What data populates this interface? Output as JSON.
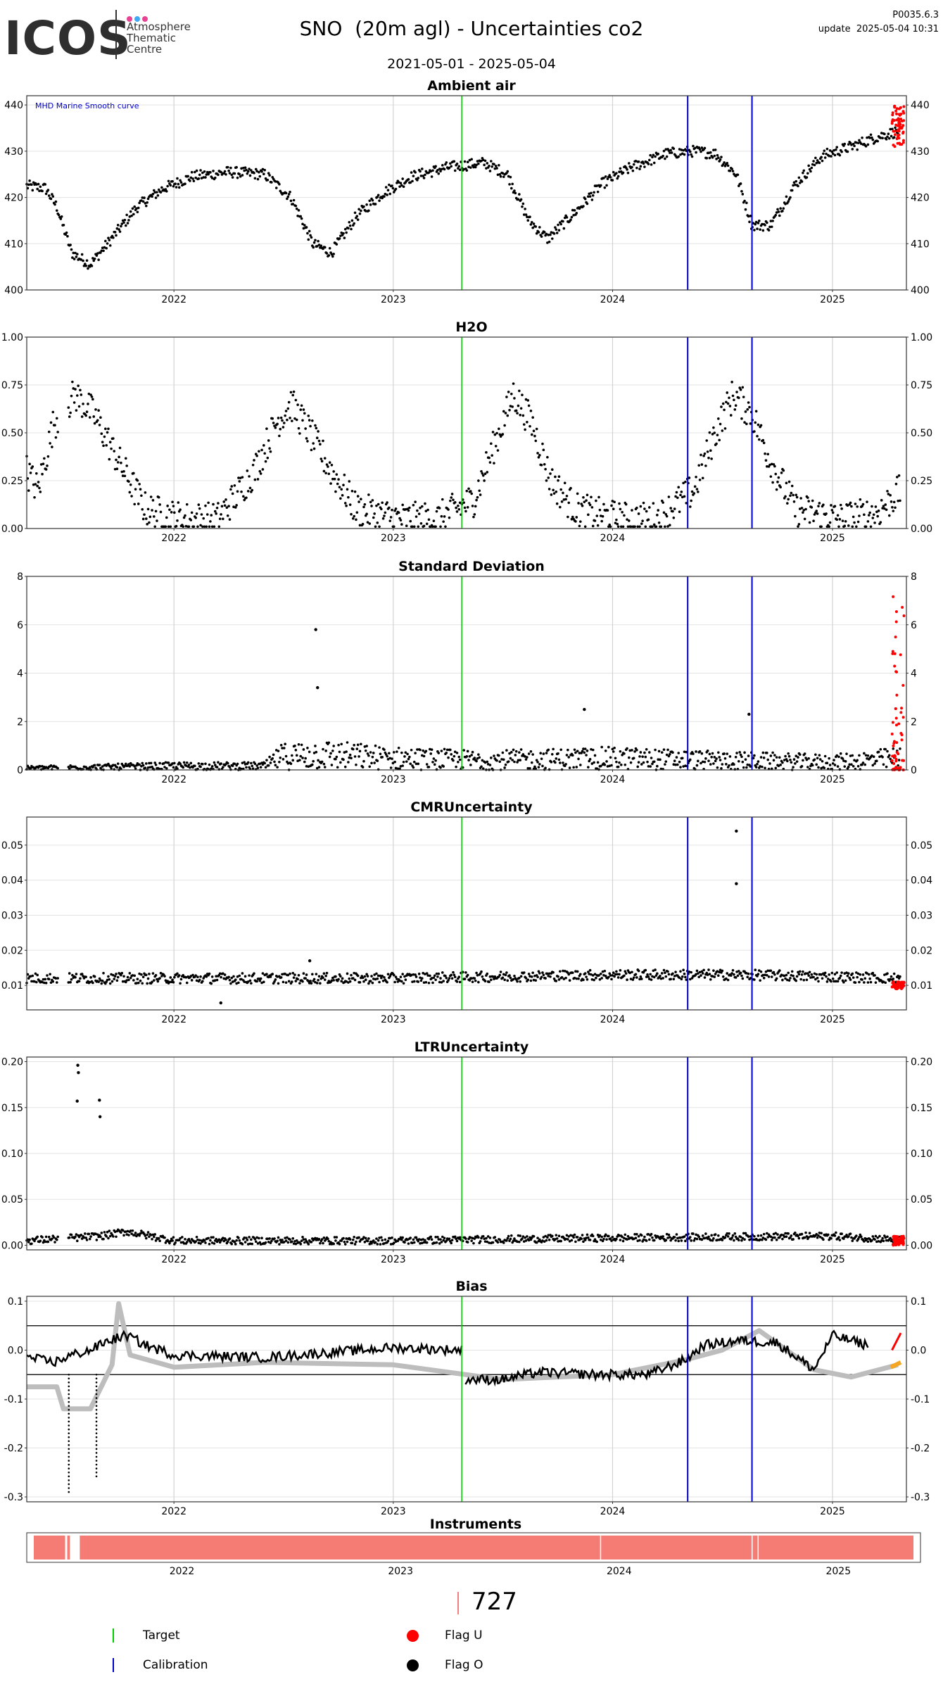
{
  "header": {
    "logo_text": "ICOS",
    "logo_sub": "Atmosphere Thematic Centre",
    "version": "P0035.6.3",
    "update": "update  2025-05-04 10:31",
    "title": "SNO  (20m agl) - Uncertainties co2",
    "date_range": "2021-05-01 - 2025-05-04",
    "logo_dot_colors": [
      "#e84393",
      "#3fa9f5",
      "#e84393"
    ]
  },
  "colors": {
    "points": "#000000",
    "flag_u": "#ff0000",
    "target": "#00cc00",
    "calibration": "#0000cc",
    "bias_smooth": "#bdbdbd",
    "bias_recent": "#f5a623",
    "instrument_bar": "#f47c74"
  },
  "chart_data": [
    {
      "type": "scatter",
      "title": "Ambient air",
      "annotation": "MHD Marine Smooth curve",
      "xlim": [
        "2021-05-01",
        "2025-05-04"
      ],
      "ylim": [
        400,
        442
      ],
      "yticks": [
        400,
        410,
        420,
        430,
        440
      ],
      "xticks": [
        "2022",
        "2023",
        "2024",
        "2025"
      ],
      "series": [
        {
          "values_x": [
            "2021-05-01",
            "2021-06-01",
            "2021-06-20",
            "2021-07-15",
            "2021-08-15",
            "2021-10-01",
            "2021-11-01",
            "2021-12-15",
            "2022-02-01",
            "2022-04-01",
            "2022-06-01",
            "2022-07-15",
            "2022-08-20",
            "2022-09-20",
            "2022-11-01",
            "2022-12-15",
            "2023-02-01",
            "2023-04-01",
            "2023-06-01",
            "2023-07-10",
            "2023-08-15",
            "2023-09-15",
            "2023-11-01",
            "2023-12-15",
            "2024-02-01",
            "2024-04-01",
            "2024-05-15",
            "2024-06-20",
            "2024-07-25",
            "2024-08-20",
            "2024-09-20",
            "2024-11-01",
            "2024-12-15",
            "2025-02-01",
            "2025-03-15",
            "2025-04-25"
          ],
          "values_y": [
            422.5,
            422,
            418,
            408,
            405.5,
            413,
            418,
            422,
            424.5,
            425.5,
            425,
            420,
            410,
            408,
            416,
            421,
            424.5,
            426.5,
            427.5,
            425,
            415,
            411,
            417,
            423,
            426.5,
            429.5,
            430,
            429.5,
            425,
            414,
            414,
            423,
            429,
            431,
            433,
            434.5
          ]
        }
      ],
      "flag_u_tail": {
        "x_start": "2025-04-10",
        "y_range": [
          431,
          440
        ]
      },
      "target_lines": [
        "2023-04-25"
      ],
      "calibration_lines": [
        "2024-05-05",
        "2024-08-20"
      ]
    },
    {
      "type": "scatter",
      "title": "H2O",
      "xlim": [
        "2021-05-01",
        "2025-05-04"
      ],
      "ylim": [
        0,
        1.0
      ],
      "yticks": [
        0.0,
        0.25,
        0.5,
        0.75,
        1.0
      ],
      "xticks": [
        "2022",
        "2023",
        "2024",
        "2025"
      ],
      "series": [
        {
          "values_x": [
            "2021-05-01",
            "2021-05-20",
            "2021-06-15",
            "2021-07-20",
            "2021-08-20",
            "2021-10-01",
            "2021-11-15",
            "2022-01-15",
            "2022-03-15",
            "2022-05-15",
            "2022-06-20",
            "2022-07-15",
            "2022-08-15",
            "2022-09-20",
            "2022-11-01",
            "2023-01-15",
            "2023-03-15",
            "2023-05-15",
            "2023-06-20",
            "2023-07-20",
            "2023-08-20",
            "2023-09-20",
            "2023-11-01",
            "2024-01-15",
            "2024-03-15",
            "2024-05-15",
            "2024-06-20",
            "2024-07-20",
            "2024-08-20",
            "2024-09-20",
            "2024-11-01",
            "2025-01-15",
            "2025-03-15",
            "2025-04-25"
          ],
          "values_y": [
            0.3,
            0.2,
            0.55,
            0.7,
            0.6,
            0.35,
            0.1,
            0.05,
            0.05,
            0.3,
            0.55,
            0.65,
            0.5,
            0.3,
            0.1,
            0.05,
            0.05,
            0.15,
            0.45,
            0.7,
            0.55,
            0.25,
            0.1,
            0.05,
            0.05,
            0.2,
            0.5,
            0.7,
            0.6,
            0.35,
            0.1,
            0.05,
            0.08,
            0.2
          ]
        }
      ],
      "target_lines": [
        "2023-04-25"
      ],
      "calibration_lines": [
        "2024-05-05",
        "2024-08-20"
      ]
    },
    {
      "type": "scatter",
      "title": "Standard Deviation",
      "xlim": [
        "2021-05-01",
        "2025-05-04"
      ],
      "ylim": [
        0,
        8
      ],
      "yticks": [
        0,
        2,
        4,
        6,
        8
      ],
      "xticks": [
        "2022",
        "2023",
        "2024",
        "2025"
      ],
      "series": [
        {
          "values_x": [
            "2021-05-01",
            "2021-09-01",
            "2022-01-01",
            "2022-06-01",
            "2022-07-01",
            "2022-09-01",
            "2023-01-01",
            "2023-06-01",
            "2024-01-01",
            "2024-06-01",
            "2025-01-01",
            "2025-04-25"
          ],
          "values_y": [
            0.1,
            0.15,
            0.2,
            0.2,
            0.7,
            0.8,
            0.6,
            0.5,
            0.6,
            0.5,
            0.4,
            0.6
          ]
        }
      ],
      "outliers": [
        {
          "x": "2022-08-25",
          "y": 5.8
        },
        {
          "x": "2022-08-28",
          "y": 3.4
        },
        {
          "x": "2023-11-15",
          "y": 2.5
        },
        {
          "x": "2024-08-15",
          "y": 2.3
        }
      ],
      "flag_u_tail": {
        "x_start": "2025-04-10",
        "y_range": [
          0,
          7.8
        ]
      },
      "target_lines": [
        "2023-04-25"
      ],
      "calibration_lines": [
        "2024-05-05",
        "2024-08-20"
      ]
    },
    {
      "type": "scatter",
      "title": "CMRUncertainty",
      "xlim": [
        "2021-05-01",
        "2025-05-04"
      ],
      "ylim": [
        0.003,
        0.058
      ],
      "yticks": [
        0.01,
        0.02,
        0.03,
        0.04,
        0.05
      ],
      "xticks": [
        "2022",
        "2023",
        "2024",
        "2025"
      ],
      "series": [
        {
          "values_x": [
            "2021-05-01",
            "2022-01-01",
            "2023-01-01",
            "2024-01-01",
            "2024-08-01",
            "2025-04-25"
          ],
          "values_y": [
            0.012,
            0.012,
            0.012,
            0.013,
            0.013,
            0.012
          ]
        }
      ],
      "outliers": [
        {
          "x": "2024-07-25",
          "y": 0.054
        },
        {
          "x": "2024-07-25",
          "y": 0.039
        },
        {
          "x": "2022-08-15",
          "y": 0.017
        },
        {
          "x": "2022-03-20",
          "y": 0.005
        }
      ],
      "flag_u_tail": {
        "x_start": "2025-04-10",
        "y_range": [
          0.009,
          0.011
        ]
      },
      "target_lines": [
        "2023-04-25"
      ],
      "calibration_lines": [
        "2024-05-05",
        "2024-08-20"
      ]
    },
    {
      "type": "scatter",
      "title": "LTRUncertainty",
      "xlim": [
        "2021-05-01",
        "2025-05-04"
      ],
      "ylim": [
        -0.005,
        0.205
      ],
      "yticks": [
        0.0,
        0.05,
        0.1,
        0.15,
        0.2
      ],
      "xticks": [
        "2022",
        "2023",
        "2024",
        "2025"
      ],
      "series": [
        {
          "values_x": [
            "2021-05-01",
            "2021-09-01",
            "2021-10-15",
            "2022-01-01",
            "2023-01-01",
            "2024-01-01",
            "2025-01-01",
            "2025-04-25"
          ],
          "values_y": [
            0.005,
            0.01,
            0.015,
            0.005,
            0.005,
            0.008,
            0.01,
            0.006
          ]
        }
      ],
      "outliers": [
        {
          "x": "2021-07-25",
          "y": 0.196
        },
        {
          "x": "2021-07-26",
          "y": 0.188
        },
        {
          "x": "2021-07-24",
          "y": 0.157
        },
        {
          "x": "2021-08-30",
          "y": 0.158
        },
        {
          "x": "2021-08-31",
          "y": 0.14
        }
      ],
      "flag_u_tail": {
        "x_start": "2025-04-10",
        "y_range": [
          0.0,
          0.01
        ]
      },
      "target_lines": [
        "2023-04-25"
      ],
      "calibration_lines": [
        "2024-05-05",
        "2024-08-20"
      ]
    },
    {
      "type": "line",
      "title": "Bias",
      "xlim": [
        "2021-05-01",
        "2025-05-04"
      ],
      "ylim": [
        -0.31,
        0.11
      ],
      "yticks": [
        0.1,
        0.0,
        -0.1,
        -0.2,
        -0.3
      ],
      "ytick_labels": [
        "0.1",
        "0.0",
        "-0.1",
        "-0.2",
        "-0.3"
      ],
      "xticks": [
        "2022",
        "2023",
        "2024",
        "2025"
      ],
      "hlines": [
        0.05,
        -0.05
      ],
      "series": [
        {
          "values_x": [
            "2021-05-01",
            "2021-06-15",
            "2021-07-15",
            "2021-08-15",
            "2021-09-15",
            "2021-10-15",
            "2021-11-15",
            "2022-01-01",
            "2022-06-01",
            "2023-01-01",
            "2023-04-25"
          ],
          "values_y": [
            -0.015,
            -0.025,
            -0.01,
            0.0,
            0.02,
            0.03,
            0.01,
            -0.01,
            -0.015,
            0.005,
            0.0
          ]
        },
        {
          "values_x": [
            "2023-05-01",
            "2023-07-01",
            "2023-09-01",
            "2023-12-01",
            "2024-03-01",
            "2024-05-01",
            "2024-06-01",
            "2024-08-01",
            "2024-10-01",
            "2024-12-01",
            "2025-01-01",
            "2025-03-01"
          ],
          "values_y": [
            -0.06,
            -0.06,
            -0.045,
            -0.05,
            -0.05,
            -0.02,
            0.01,
            0.02,
            0.015,
            -0.04,
            0.03,
            0.01
          ]
        },
        {
          "values_x": [
            "2021-05-01",
            "2021-06-20",
            "2021-07-01",
            "2021-08-15",
            "2021-09-20",
            "2021-10-01",
            "2021-10-20",
            "2022-01-01",
            "2022-06-01",
            "2023-01-01",
            "2023-07-01",
            "2024-01-01",
            "2024-05-01",
            "2024-07-01",
            "2024-09-01",
            "2024-12-01",
            "2025-02-01",
            "2025-04-20"
          ],
          "values_y": [
            -0.075,
            -0.075,
            -0.12,
            -0.12,
            -0.03,
            0.095,
            -0.01,
            -0.035,
            -0.025,
            -0.03,
            -0.06,
            -0.05,
            -0.02,
            0.0,
            0.04,
            -0.04,
            -0.055,
            -0.03
          ]
        }
      ],
      "flag_u_tail": {
        "x_start": "2025-04-10",
        "y_range": [
          0.0,
          0.035
        ]
      },
      "recent_orange": {
        "x_start": "2025-04-08",
        "y_range": [
          -0.035,
          -0.025
        ]
      },
      "target_lines": [
        "2023-04-25"
      ],
      "calibration_lines": [
        "2024-05-05",
        "2024-08-20"
      ]
    }
  ],
  "instruments": {
    "title": "Instruments",
    "xticks": [
      "2022",
      "2023",
      "2024",
      "2025"
    ],
    "count_label": "727"
  },
  "legend": {
    "target": "Target",
    "calibration": "Calibration",
    "flag_u": "Flag U",
    "flag_o": "Flag O"
  }
}
